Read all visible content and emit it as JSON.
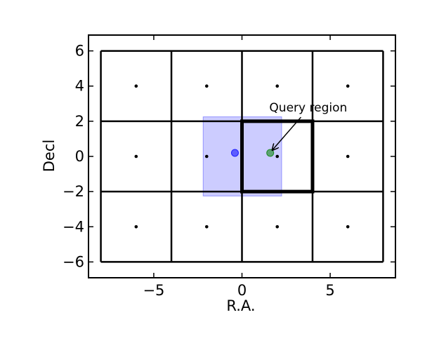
{
  "chart_data": {
    "type": "scatter",
    "title": "",
    "xlabel": "R.A.",
    "ylabel": "Decl",
    "xlim": [
      -8.7,
      8.7
    ],
    "ylim": [
      -6.9,
      6.9
    ],
    "xticks": [
      -5,
      0,
      5
    ],
    "xtick_labels": [
      "−5",
      "0",
      "5"
    ],
    "yticks": [
      -6,
      -4,
      -2,
      0,
      2,
      4,
      6
    ],
    "ytick_labels": [
      "−6",
      "−4",
      "−2",
      "0",
      "2",
      "4",
      "6"
    ],
    "grid": false,
    "legend": "none",
    "cell_edges_x": [
      -8,
      -4,
      0,
      4,
      8
    ],
    "cell_edges_y": [
      -6,
      -2,
      2,
      6
    ],
    "cell_centers": [
      [
        -6,
        4
      ],
      [
        -2,
        4
      ],
      [
        2,
        4
      ],
      [
        6,
        4
      ],
      [
        -6,
        0
      ],
      [
        -2,
        0
      ],
      [
        2,
        0
      ],
      [
        6,
        0
      ],
      [
        -6,
        -4
      ],
      [
        -2,
        -4
      ],
      [
        2,
        -4
      ],
      [
        6,
        -4
      ]
    ],
    "query_rect": {
      "x": [
        -2.2,
        2.25
      ],
      "y": [
        -2.25,
        2.25
      ],
      "color": "#0000ff"
    },
    "highlighted_cell": {
      "x": [
        0,
        4
      ],
      "y": [
        -2,
        2
      ]
    },
    "points": [
      {
        "x": -0.4,
        "y": 0.2,
        "color": "#0000ff"
      },
      {
        "x": 1.6,
        "y": 0.2,
        "color": "#008000"
      }
    ],
    "annotation": {
      "text": "Query region",
      "text_at": [
        1.55,
        2.55
      ],
      "arrow_to": [
        1.6,
        0.2
      ]
    }
  }
}
